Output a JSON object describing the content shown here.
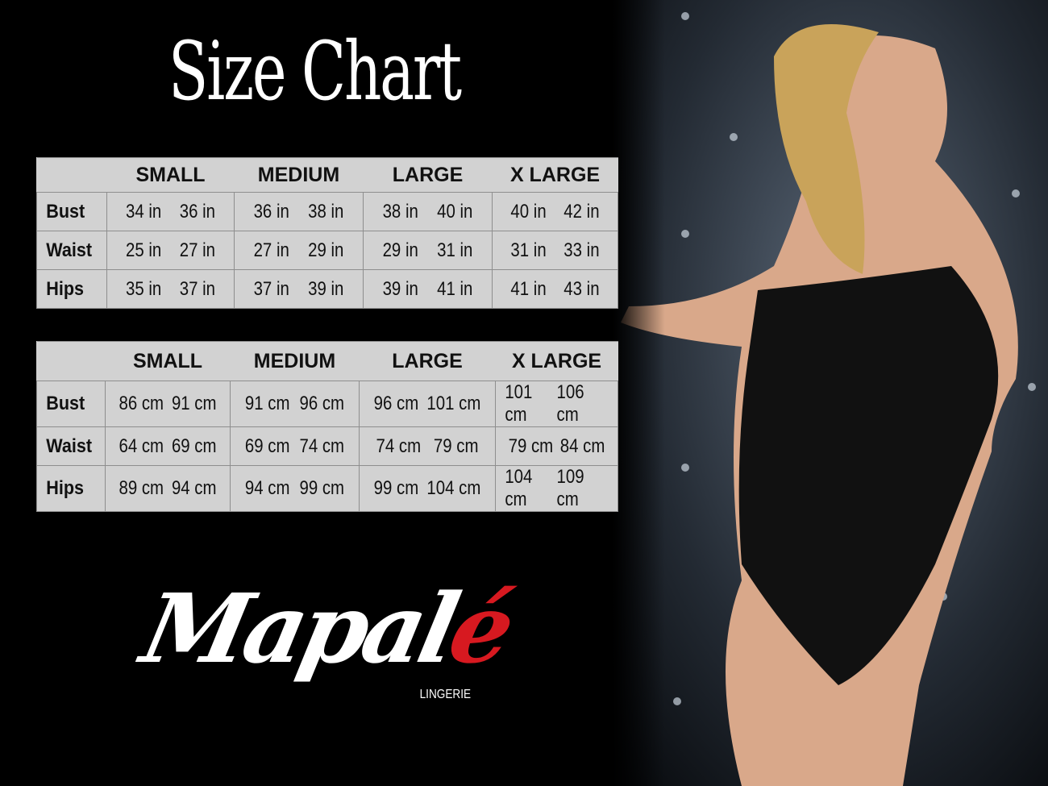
{
  "title": "Size Chart",
  "sizes": [
    "SMALL",
    "MEDIUM",
    "LARGE",
    "X LARGE"
  ],
  "inches_table": {
    "rows": [
      {
        "label": "Bust",
        "values": [
          "34 in",
          "36 in",
          "36 in",
          "38 in",
          "38 in",
          "40 in",
          "40 in",
          "42 in"
        ]
      },
      {
        "label": "Waist",
        "values": [
          "25 in",
          "27 in",
          "27 in",
          "29 in",
          "29 in",
          "31 in",
          "31 in",
          "33 in"
        ]
      },
      {
        "label": "Hips",
        "values": [
          "35 in",
          "37 in",
          "37 in",
          "39 in",
          "39 in",
          "41 in",
          "41 in",
          "43 in"
        ]
      }
    ]
  },
  "cm_table": {
    "rows": [
      {
        "label": "Bust",
        "values": [
          "86 cm",
          "91 cm",
          "91 cm",
          "96 cm",
          "96 cm",
          "101 cm",
          "101 cm",
          "106 cm"
        ]
      },
      {
        "label": "Waist",
        "values": [
          "64 cm",
          "69 cm",
          "69 cm",
          "74 cm",
          "74 cm",
          "79  cm",
          "79 cm",
          "84 cm"
        ]
      },
      {
        "label": "Hips",
        "values": [
          "89 cm",
          "94 cm",
          "94 cm",
          "99 cm",
          "99 cm",
          "104 cm",
          "104 cm",
          "109 cm"
        ]
      }
    ]
  },
  "brand": {
    "name_main": "Mapal",
    "name_accent": "é",
    "tagline": "LINGERIE",
    "accent_color": "#d71920"
  },
  "colors": {
    "background": "#000000",
    "table_bg": "#d2d2d2",
    "table_border": "#8e8e8e"
  }
}
